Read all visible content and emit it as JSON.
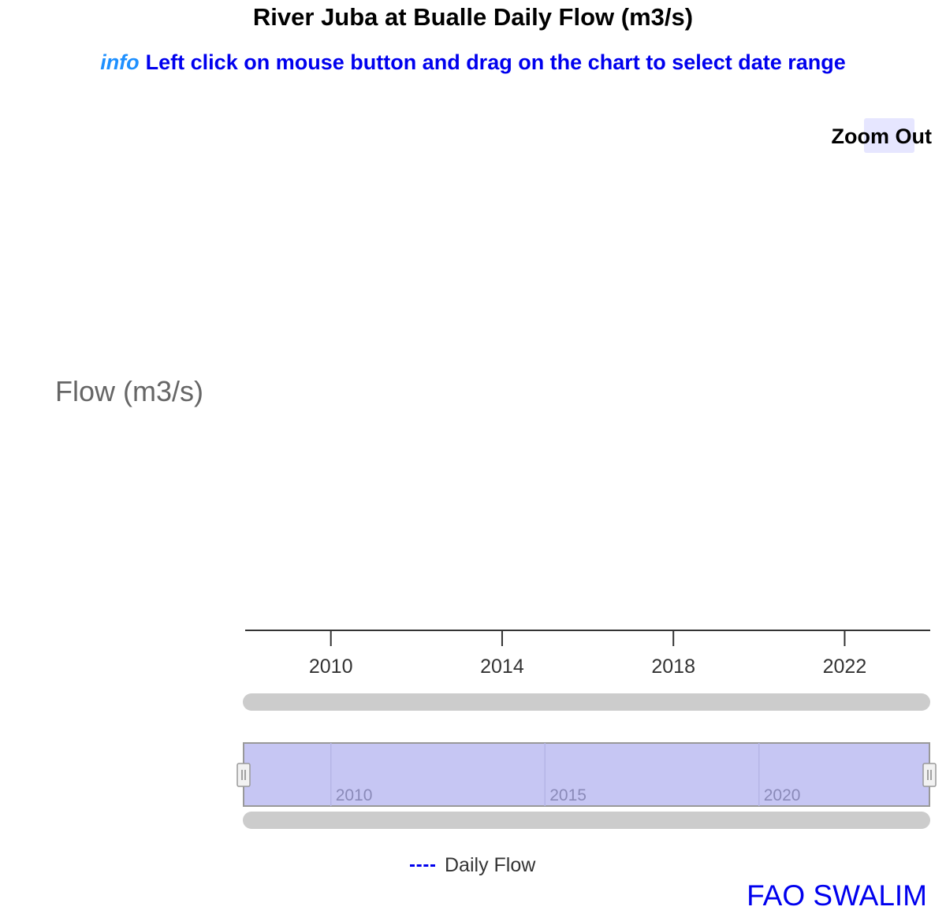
{
  "header": {
    "title": "River Juba at Bualle Daily Flow (m3/s)",
    "info_label": "info",
    "info_text": "Left click on mouse button and drag on the chart to select date range"
  },
  "toolbar": {
    "zoom_out_label": "Zoom Out"
  },
  "footer": {
    "credit": "FAO SWALIM"
  },
  "colors": {
    "series": "#0000ee",
    "navigator_fill": "#c6c6f3",
    "scrollbar": "#cccccc"
  },
  "chart_data": {
    "type": "line",
    "title": "River Juba at Bualle Daily Flow (m3/s)",
    "ylabel": "Flow (m3/s)",
    "xlabel": "",
    "x_axis": {
      "type": "date",
      "range": [
        "2008-01-01",
        "2024-01-01"
      ],
      "ticks": [
        "2010",
        "2014",
        "2018",
        "2022"
      ]
    },
    "navigator_ticks": [
      "2010",
      "2015",
      "2020"
    ],
    "series": [
      {
        "name": "Daily Flow",
        "values": []
      }
    ],
    "legend": "bottom-center",
    "grid": false
  }
}
